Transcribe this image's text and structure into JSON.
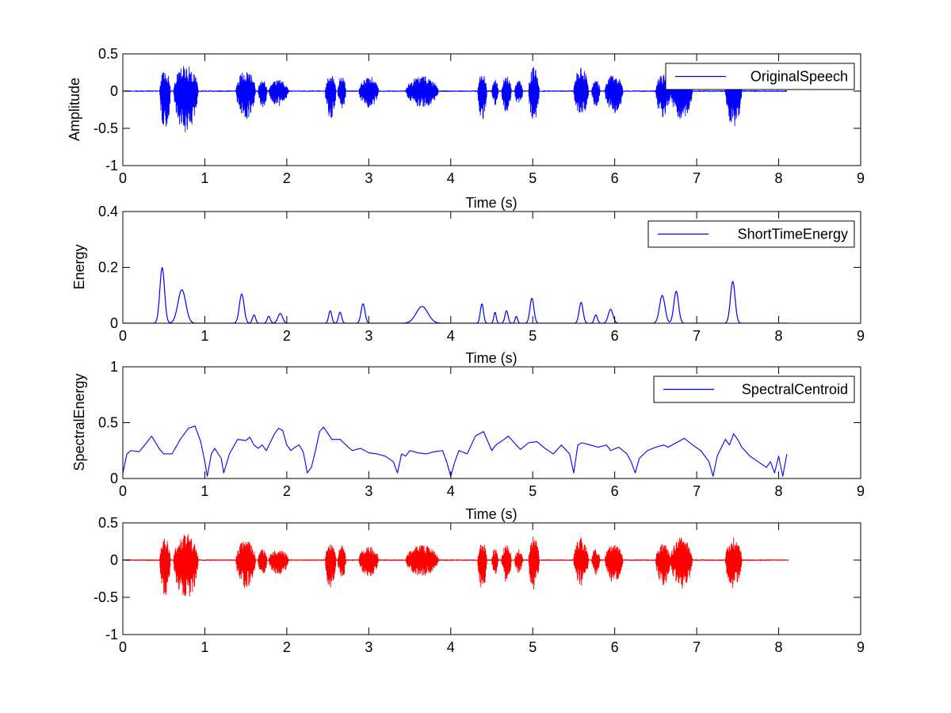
{
  "chart_data": [
    {
      "type": "line",
      "xlabel": "Time (s)",
      "ylabel": "Amplitude",
      "xlim": [
        0,
        9
      ],
      "ylim": [
        -1,
        0.5
      ],
      "xticks": [
        "0",
        "1",
        "2",
        "3",
        "4",
        "5",
        "6",
        "7",
        "8",
        "9"
      ],
      "yticks": [
        "-1",
        "-0.5",
        "0",
        "0.5"
      ],
      "legend": "top-right",
      "series": [
        {
          "name": "OriginalSpeech",
          "color": "#0000ff",
          "kind": "waveform",
          "x_end": 8.1,
          "bursts": [
            {
              "start": 0.45,
              "end": 0.58,
              "pos": 0.3,
              "neg": 0.52
            },
            {
              "start": 0.62,
              "end": 0.92,
              "pos": 0.35,
              "neg": 0.55
            },
            {
              "start": 1.38,
              "end": 1.62,
              "pos": 0.28,
              "neg": 0.38
            },
            {
              "start": 1.65,
              "end": 1.76,
              "pos": 0.15,
              "neg": 0.22
            },
            {
              "start": 1.78,
              "end": 2.02,
              "pos": 0.15,
              "neg": 0.2
            },
            {
              "start": 2.47,
              "end": 2.6,
              "pos": 0.22,
              "neg": 0.4
            },
            {
              "start": 2.62,
              "end": 2.72,
              "pos": 0.2,
              "neg": 0.25
            },
            {
              "start": 2.88,
              "end": 3.12,
              "pos": 0.2,
              "neg": 0.22
            },
            {
              "start": 3.45,
              "end": 3.85,
              "pos": 0.2,
              "neg": 0.22
            },
            {
              "start": 4.33,
              "end": 4.44,
              "pos": 0.24,
              "neg": 0.4
            },
            {
              "start": 4.5,
              "end": 4.58,
              "pos": 0.15,
              "neg": 0.2
            },
            {
              "start": 4.62,
              "end": 4.74,
              "pos": 0.2,
              "neg": 0.3
            },
            {
              "start": 4.78,
              "end": 4.88,
              "pos": 0.14,
              "neg": 0.18
            },
            {
              "start": 4.95,
              "end": 5.08,
              "pos": 0.32,
              "neg": 0.4
            },
            {
              "start": 5.5,
              "end": 5.68,
              "pos": 0.32,
              "neg": 0.34
            },
            {
              "start": 5.72,
              "end": 5.82,
              "pos": 0.15,
              "neg": 0.2
            },
            {
              "start": 5.88,
              "end": 6.1,
              "pos": 0.22,
              "neg": 0.3
            },
            {
              "start": 6.5,
              "end": 6.68,
              "pos": 0.22,
              "neg": 0.35
            },
            {
              "start": 6.68,
              "end": 6.95,
              "pos": 0.3,
              "neg": 0.38
            },
            {
              "start": 7.35,
              "end": 7.55,
              "pos": 0.18,
              "neg": 0.48
            }
          ]
        }
      ]
    },
    {
      "type": "line",
      "xlabel": "Time (s)",
      "ylabel": "Energy",
      "xlim": [
        0,
        9
      ],
      "ylim": [
        0,
        0.4
      ],
      "xticks": [
        "0",
        "1",
        "2",
        "3",
        "4",
        "5",
        "6",
        "7",
        "8",
        "9"
      ],
      "yticks": [
        "0",
        "0.2",
        "0.4"
      ],
      "legend": "top-right",
      "series": [
        {
          "name": "ShortTimeEnergy",
          "color": "#0000ff",
          "kind": "envelope",
          "x_end": 8.1,
          "peaks": [
            {
              "t": 0.48,
              "v": 0.2,
              "w": 0.06
            },
            {
              "t": 0.72,
              "v": 0.12,
              "w": 0.1
            },
            {
              "t": 1.45,
              "v": 0.105,
              "w": 0.06
            },
            {
              "t": 1.6,
              "v": 0.03,
              "w": 0.04
            },
            {
              "t": 1.78,
              "v": 0.025,
              "w": 0.04
            },
            {
              "t": 1.92,
              "v": 0.035,
              "w": 0.06
            },
            {
              "t": 2.53,
              "v": 0.045,
              "w": 0.04
            },
            {
              "t": 2.65,
              "v": 0.04,
              "w": 0.04
            },
            {
              "t": 2.93,
              "v": 0.07,
              "w": 0.05
            },
            {
              "t": 3.65,
              "v": 0.06,
              "w": 0.15
            },
            {
              "t": 4.38,
              "v": 0.07,
              "w": 0.04
            },
            {
              "t": 4.54,
              "v": 0.04,
              "w": 0.03
            },
            {
              "t": 4.68,
              "v": 0.045,
              "w": 0.04
            },
            {
              "t": 4.8,
              "v": 0.025,
              "w": 0.03
            },
            {
              "t": 4.99,
              "v": 0.09,
              "w": 0.05
            },
            {
              "t": 5.59,
              "v": 0.075,
              "w": 0.05
            },
            {
              "t": 5.77,
              "v": 0.03,
              "w": 0.04
            },
            {
              "t": 5.95,
              "v": 0.05,
              "w": 0.06
            },
            {
              "t": 6.58,
              "v": 0.1,
              "w": 0.07
            },
            {
              "t": 6.75,
              "v": 0.115,
              "w": 0.06
            },
            {
              "t": 7.44,
              "v": 0.15,
              "w": 0.06
            }
          ]
        }
      ]
    },
    {
      "type": "line",
      "xlabel": "Time (s)",
      "ylabel": "SpectralEnergy",
      "xlim": [
        0,
        9
      ],
      "ylim": [
        0,
        1
      ],
      "xticks": [
        "0",
        "1",
        "2",
        "3",
        "4",
        "5",
        "6",
        "7",
        "8",
        "9"
      ],
      "yticks": [
        "0",
        "0.5",
        "1"
      ],
      "legend": "top-right",
      "series": [
        {
          "name": "SpectralCentroid",
          "color": "#0000ff",
          "kind": "line",
          "x": [
            0,
            0.05,
            0.1,
            0.2,
            0.3,
            0.35,
            0.45,
            0.5,
            0.6,
            0.7,
            0.8,
            0.88,
            0.95,
            1.0,
            1.03,
            1.08,
            1.12,
            1.2,
            1.23,
            1.3,
            1.4,
            1.5,
            1.55,
            1.6,
            1.65,
            1.7,
            1.75,
            1.85,
            1.9,
            1.95,
            2.0,
            2.05,
            2.1,
            2.15,
            2.2,
            2.25,
            2.3,
            2.35,
            2.4,
            2.45,
            2.55,
            2.65,
            2.75,
            2.8,
            2.9,
            3.0,
            3.1,
            3.2,
            3.3,
            3.35,
            3.4,
            3.45,
            3.5,
            3.6,
            3.7,
            3.8,
            3.9,
            3.95,
            4.0,
            4.05,
            4.1,
            4.2,
            4.3,
            4.4,
            4.5,
            4.55,
            4.65,
            4.7,
            4.8,
            4.85,
            4.95,
            5.05,
            5.15,
            5.25,
            5.35,
            5.45,
            5.5,
            5.55,
            5.6,
            5.7,
            5.8,
            5.9,
            5.95,
            6.05,
            6.15,
            6.2,
            6.25,
            6.3,
            6.4,
            6.5,
            6.6,
            6.65,
            6.75,
            6.85,
            6.95,
            7.05,
            7.15,
            7.2,
            7.25,
            7.35,
            7.4,
            7.45,
            7.5,
            7.55,
            7.65,
            7.75,
            7.85,
            7.9,
            7.95,
            8.0,
            8.05,
            8.1
          ],
          "y": [
            0.05,
            0.22,
            0.25,
            0.24,
            0.33,
            0.38,
            0.26,
            0.22,
            0.22,
            0.35,
            0.45,
            0.47,
            0.33,
            0.15,
            0.02,
            0.22,
            0.27,
            0.18,
            0.05,
            0.22,
            0.35,
            0.34,
            0.37,
            0.3,
            0.27,
            0.3,
            0.25,
            0.4,
            0.45,
            0.43,
            0.3,
            0.25,
            0.28,
            0.3,
            0.24,
            0.05,
            0.1,
            0.25,
            0.42,
            0.46,
            0.35,
            0.35,
            0.28,
            0.25,
            0.27,
            0.23,
            0.22,
            0.2,
            0.15,
            0.05,
            0.22,
            0.2,
            0.25,
            0.23,
            0.22,
            0.24,
            0.25,
            0.15,
            0.02,
            0.15,
            0.25,
            0.22,
            0.38,
            0.42,
            0.25,
            0.3,
            0.35,
            0.38,
            0.3,
            0.26,
            0.32,
            0.33,
            0.27,
            0.22,
            0.3,
            0.22,
            0.05,
            0.3,
            0.32,
            0.3,
            0.28,
            0.3,
            0.25,
            0.28,
            0.22,
            0.15,
            0.05,
            0.18,
            0.25,
            0.28,
            0.3,
            0.28,
            0.32,
            0.36,
            0.3,
            0.25,
            0.15,
            0.02,
            0.2,
            0.35,
            0.3,
            0.4,
            0.35,
            0.28,
            0.2,
            0.15,
            0.1,
            0.15,
            0.05,
            0.2,
            0.02,
            0.22
          ]
        }
      ]
    },
    {
      "type": "line",
      "xlabel": "",
      "ylabel": "",
      "xlim": [
        0,
        9
      ],
      "ylim": [
        -1,
        0.5
      ],
      "xticks": [
        "0",
        "1",
        "2",
        "3",
        "4",
        "5",
        "6",
        "7",
        "8",
        "9"
      ],
      "yticks": [
        "-1",
        "-0.5",
        "0",
        "0.5"
      ],
      "legend": "none",
      "series": [
        {
          "name": "",
          "color": "#aaaaaa",
          "kind": "baseline",
          "x": [
            0,
            8.12
          ],
          "y": [
            0,
            0
          ]
        },
        {
          "name": "",
          "color": "#ff0000",
          "kind": "waveform",
          "x_end": 8.12,
          "bursts": [
            {
              "start": 0.45,
              "end": 0.58,
              "pos": 0.3,
              "neg": 0.52
            },
            {
              "start": 0.62,
              "end": 0.92,
              "pos": 0.35,
              "neg": 0.55
            },
            {
              "start": 1.38,
              "end": 1.62,
              "pos": 0.28,
              "neg": 0.38
            },
            {
              "start": 1.65,
              "end": 1.76,
              "pos": 0.15,
              "neg": 0.22
            },
            {
              "start": 1.78,
              "end": 2.02,
              "pos": 0.15,
              "neg": 0.2
            },
            {
              "start": 2.47,
              "end": 2.6,
              "pos": 0.22,
              "neg": 0.4
            },
            {
              "start": 2.62,
              "end": 2.72,
              "pos": 0.2,
              "neg": 0.25
            },
            {
              "start": 2.88,
              "end": 3.12,
              "pos": 0.2,
              "neg": 0.22
            },
            {
              "start": 3.45,
              "end": 3.85,
              "pos": 0.2,
              "neg": 0.22
            },
            {
              "start": 4.33,
              "end": 4.44,
              "pos": 0.24,
              "neg": 0.4
            },
            {
              "start": 4.5,
              "end": 4.58,
              "pos": 0.15,
              "neg": 0.2
            },
            {
              "start": 4.62,
              "end": 4.74,
              "pos": 0.2,
              "neg": 0.3
            },
            {
              "start": 4.78,
              "end": 4.88,
              "pos": 0.14,
              "neg": 0.18
            },
            {
              "start": 4.95,
              "end": 5.08,
              "pos": 0.32,
              "neg": 0.4
            },
            {
              "start": 5.5,
              "end": 5.68,
              "pos": 0.32,
              "neg": 0.34
            },
            {
              "start": 5.72,
              "end": 5.82,
              "pos": 0.15,
              "neg": 0.2
            },
            {
              "start": 5.88,
              "end": 6.1,
              "pos": 0.22,
              "neg": 0.3
            },
            {
              "start": 6.5,
              "end": 6.68,
              "pos": 0.22,
              "neg": 0.35
            },
            {
              "start": 6.68,
              "end": 6.95,
              "pos": 0.3,
              "neg": 0.38
            },
            {
              "start": 7.35,
              "end": 7.55,
              "pos": 0.32,
              "neg": 0.38
            }
          ]
        }
      ]
    }
  ]
}
